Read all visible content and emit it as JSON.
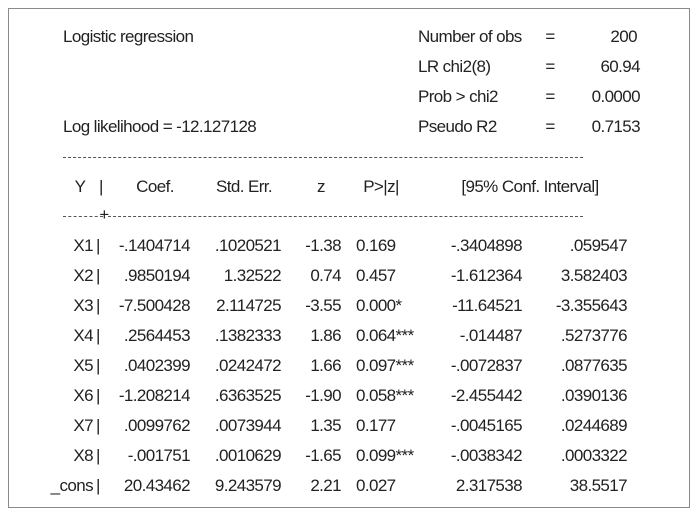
{
  "header": {
    "title": "Logistic regression",
    "log_likelihood": "Log likelihood = -12.127128",
    "stats": [
      {
        "label": "Number of obs",
        "value": "200"
      },
      {
        "label": "LR chi2(8)",
        "value": "60.94"
      },
      {
        "label": "Prob > chi2",
        "value": "0.0000"
      },
      {
        "label": "Pseudo R2",
        "value": "0.7153"
      }
    ]
  },
  "table": {
    "columns": [
      "Y",
      "Coef.",
      "Std. Err.",
      "z",
      "P>|z|",
      "[95% Conf. Interval]"
    ],
    "rows": [
      [
        "X1",
        "-.1404714",
        ".1020521",
        "-1.38",
        "0.169",
        "-.3404898",
        ".059547"
      ],
      [
        "X2",
        ".9850194",
        "1.32522",
        "0.74",
        "0.457",
        "-1.612364",
        "3.582403"
      ],
      [
        "X3",
        "-7.500428",
        "2.114725",
        "-3.55",
        "0.000*",
        "-11.64521",
        "-3.355643"
      ],
      [
        "X4",
        ".2564453",
        ".1382333",
        "1.86",
        "0.064***",
        "-.014487",
        ".5273776"
      ],
      [
        "X5",
        ".0402399",
        ".0242472",
        "1.66",
        "0.097***",
        "-.0072837",
        ".0877635"
      ],
      [
        "X6",
        "-1.208214",
        ".6363525",
        "-1.90",
        "0.058***",
        "-2.455442",
        ".0390136"
      ],
      [
        "X7",
        ".0099762",
        ".0073944",
        "1.35",
        "0.177",
        "-.0045165",
        ".0244689"
      ],
      [
        "X8",
        "-.001751",
        ".0010629",
        "-1.65",
        "0.099***",
        "-.0038342",
        ".0003322"
      ],
      [
        "_cons",
        "20.43462",
        "9.243579",
        "2.21",
        "0.027",
        "2.317538",
        "38.5517"
      ]
    ]
  }
}
